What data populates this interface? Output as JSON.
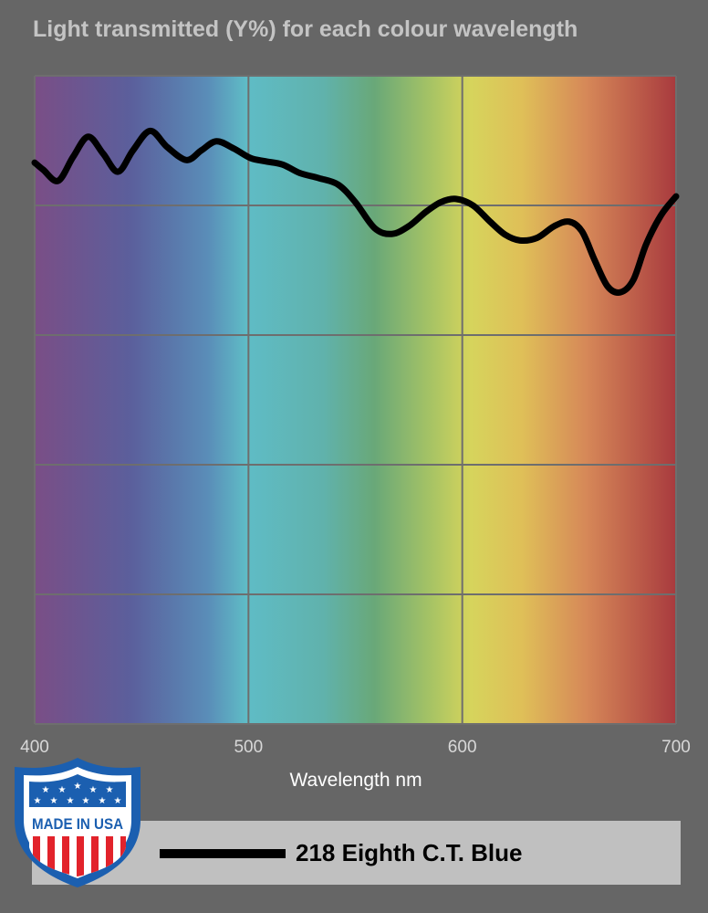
{
  "chart_data": {
    "type": "line",
    "title": "Light transmitted (Y%) for each colour wavelength",
    "xlabel": "Wavelength nm",
    "ylabel": "",
    "xlim": [
      400,
      700
    ],
    "ylim": [
      0,
      100
    ],
    "x_ticks": [
      "400",
      "500",
      "600",
      "700"
    ],
    "grid": true,
    "background": "visible spectrum gradient",
    "legend_position": "bottom",
    "series": [
      {
        "name": "218 Eighth C.T. Blue",
        "color": "#000000",
        "x": [
          400,
          404,
          411,
          418,
          425,
          432,
          439,
          446,
          454,
          462,
          471,
          478,
          485,
          493,
          501,
          508,
          516,
          524,
          533,
          542,
          550,
          559,
          567,
          575,
          583,
          590,
          597,
          605,
          613,
          620,
          627,
          635,
          643,
          650,
          656,
          662,
          668,
          674,
          680,
          686,
          693,
          700
        ],
        "y": [
          86.6,
          85.5,
          83.8,
          87.5,
          90.6,
          88.0,
          85.2,
          88.5,
          91.5,
          89.0,
          87.0,
          88.5,
          89.9,
          88.8,
          87.3,
          86.8,
          86.3,
          85.0,
          84.2,
          83.2,
          80.5,
          76.5,
          75.6,
          76.8,
          79.0,
          80.5,
          81.0,
          80.0,
          77.5,
          75.5,
          74.6,
          75.0,
          76.8,
          77.5,
          76.0,
          71.5,
          67.5,
          66.6,
          68.5,
          74.0,
          78.5,
          81.4
        ]
      }
    ]
  },
  "badge": {
    "text": "MADE IN USA"
  }
}
